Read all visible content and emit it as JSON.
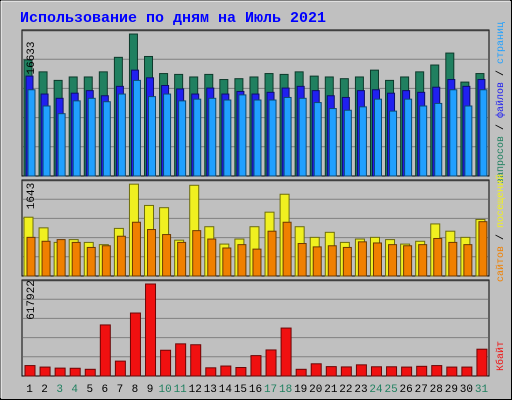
{
  "chart_data": {
    "type": "bar",
    "title": "Использование по дням на Июль 2021",
    "days": [
      "1",
      "2",
      "3",
      "4",
      "5",
      "6",
      "7",
      "8",
      "9",
      "10",
      "11",
      "12",
      "13",
      "14",
      "15",
      "16",
      "17",
      "18",
      "19",
      "20",
      "21",
      "22",
      "23",
      "24",
      "25",
      "26",
      "27",
      "28",
      "29",
      "30",
      "31"
    ],
    "weekend_days": [
      "3",
      "4",
      "10",
      "11",
      "17",
      "18",
      "24",
      "25",
      "31"
    ],
    "panels": [
      {
        "id": "top",
        "max_label": "16633",
        "max": 16633,
        "series": [
          {
            "name": "запросов",
            "color": "#208060",
            "values": [
              13600,
              12200,
              11200,
              11600,
              11600,
              12200,
              13900,
              16630,
              14000,
              12000,
              11900,
              11600,
              11900,
              11300,
              11400,
              11600,
              12000,
              11900,
              12200,
              11700,
              11600,
              11400,
              11600,
              12400,
              11200,
              11600,
              12200,
              13000,
              14400,
              11000,
              12000
            ]
          },
          {
            "name": "файлов",
            "color": "#2020f0",
            "values": [
              11700,
              9600,
              9100,
              9700,
              10000,
              9400,
              10500,
              12400,
              11500,
              10600,
              10200,
              9600,
              10300,
              9600,
              9900,
              9600,
              9800,
              10300,
              10500,
              10000,
              9400,
              9200,
              10000,
              10100,
              9700,
              10000,
              9800,
              10400,
              11300,
              10500,
              11300
            ]
          },
          {
            "name": "страниц",
            "color": "#20a0ff",
            "values": [
              10100,
              8200,
              7300,
              8800,
              9100,
              8700,
              9600,
              11200,
              9300,
              9600,
              8800,
              9000,
              9100,
              8900,
              9500,
              8900,
              8900,
              9200,
              9100,
              8600,
              7900,
              7700,
              8100,
              9000,
              7600,
              9000,
              8200,
              8500,
              10100,
              8200,
              10100
            ]
          }
        ]
      },
      {
        "id": "middle",
        "max_label": "1643",
        "max": 1643,
        "series": [
          {
            "name": "посещений",
            "color": "#f0f020",
            "values": [
              1050,
              860,
              600,
              650,
              600,
              560,
              850,
              1640,
              1260,
              1220,
              640,
              1620,
              880,
              570,
              660,
              880,
              1140,
              1460,
              880,
              690,
              780,
              600,
              660,
              690,
              650,
              570,
              620,
              930,
              800,
              690,
              1010
            ]
          },
          {
            "name": "сайтов",
            "color": "#f08000",
            "values": [
              690,
              620,
              650,
              600,
              510,
              540,
              710,
              960,
              830,
              740,
              600,
              810,
              660,
              500,
              560,
              480,
              800,
              960,
              580,
              520,
              540,
              510,
              610,
              590,
              560,
              540,
              560,
              670,
              600,
              560,
              970
            ]
          }
        ]
      },
      {
        "id": "bottom",
        "max_label": "617922",
        "max": 617922,
        "series": [
          {
            "name": "Кбайт",
            "color": "#f01010",
            "values": [
              70000,
              60000,
              53000,
              52000,
              45000,
              343000,
              100000,
              423000,
              617922,
              173000,
              216000,
              210000,
              55000,
              67000,
              57000,
              137000,
              175000,
              322000,
              45000,
              82000,
              63000,
              61000,
              75000,
              62000,
              62000,
              60000,
              65000,
              70000,
              60000,
              60000,
              180000
            ]
          }
        ]
      }
    ],
    "legend_right_top": [
      {
        "text": "запросов",
        "color": "#208060"
      },
      {
        "text": " / ",
        "color": "#000000"
      },
      {
        "text": "файлов",
        "color": "#2020f0"
      },
      {
        "text": " / ",
        "color": "#000000"
      },
      {
        "text": "страниц",
        "color": "#20a0ff"
      }
    ],
    "legend_right_middle": [
      {
        "text": "сайтов",
        "color": "#f08000"
      },
      {
        "text": " / ",
        "color": "#000000"
      },
      {
        "text": "посещений",
        "color": "#f0f020"
      }
    ],
    "legend_right_bottom": [
      {
        "text": "Кбайт",
        "color": "#f01010"
      }
    ],
    "colors": {
      "title": "#0000ff",
      "weekday_label": "#000000",
      "weekend_label": "#208060",
      "plot_bg": "#c0c0c0",
      "grid": "#808080"
    }
  }
}
